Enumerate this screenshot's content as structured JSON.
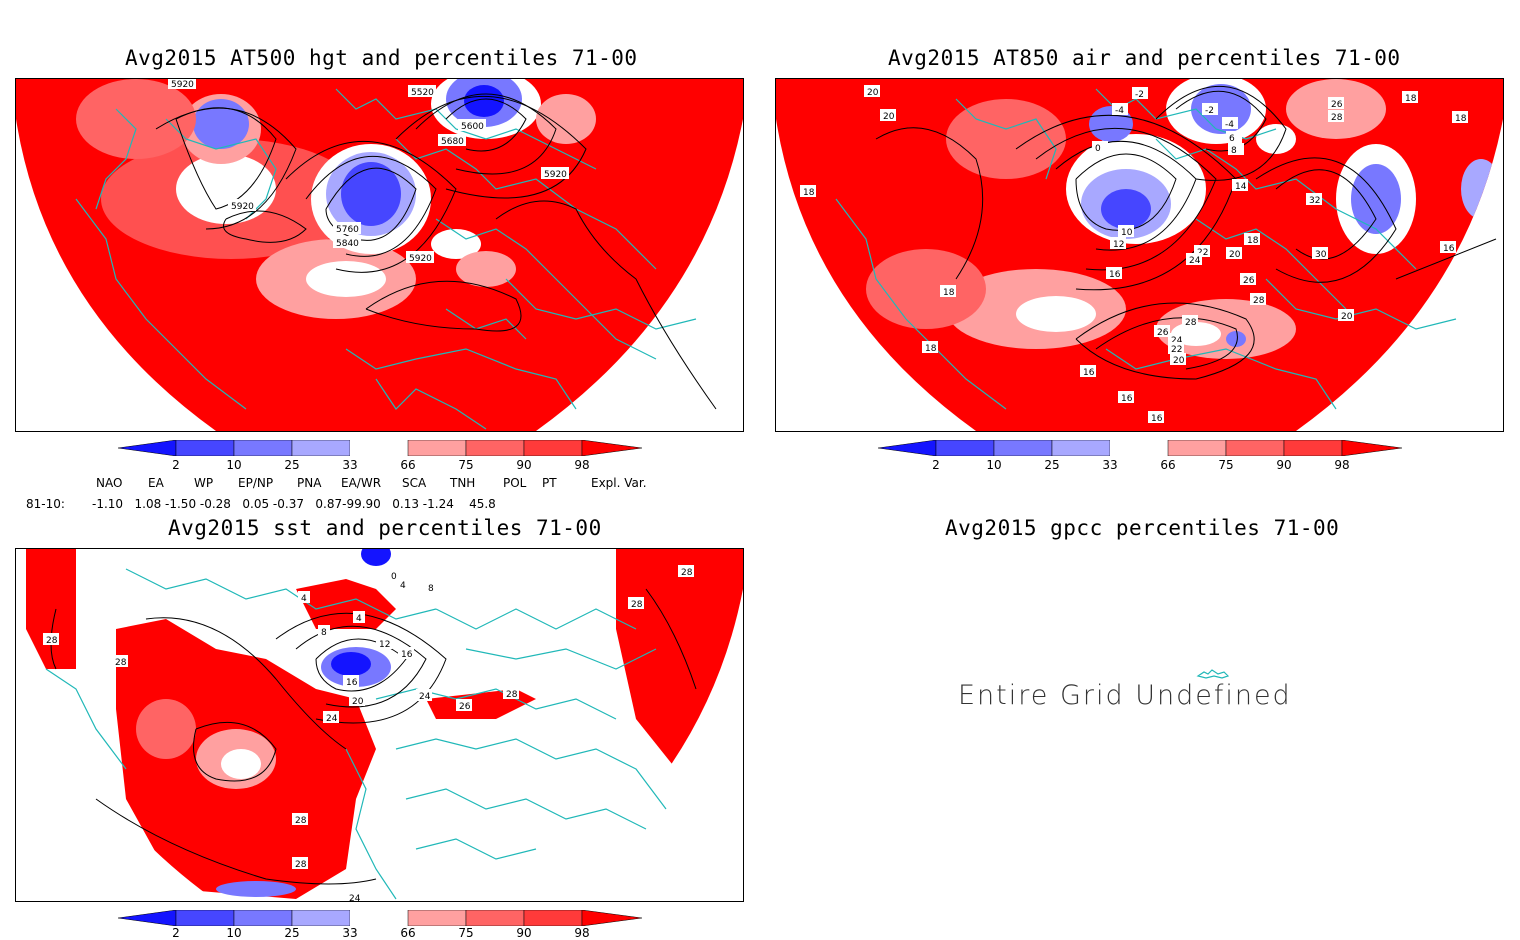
{
  "panels": {
    "hgt": {
      "title": "Avg2015 AT500 hgt and percentiles 71-00",
      "contour_labels": [
        "5920",
        "5520",
        "5600",
        "5680",
        "5920",
        "5920",
        "5760",
        "5840",
        "5920"
      ]
    },
    "air": {
      "title": "Avg2015 AT850 air and percentiles 71-00",
      "contour_labels": [
        "20",
        "20",
        "-4",
        "-2",
        "-2",
        "-4",
        "26",
        "28",
        "18",
        "18",
        "0",
        "6",
        "8",
        "18",
        "14",
        "32",
        "10",
        "12",
        "18",
        "16",
        "20",
        "30",
        "16",
        "22",
        "24",
        "26",
        "18",
        "28",
        "20",
        "28",
        "26",
        "24",
        "22",
        "20",
        "18",
        "16",
        "16",
        "16"
      ]
    },
    "sst": {
      "title": "Avg2015 sst and percentiles 71-00",
      "contour_labels": [
        "28",
        "4",
        "0",
        "4",
        "8",
        "4",
        "28",
        "28",
        "28",
        "8",
        "12",
        "16",
        "16",
        "20",
        "24",
        "24",
        "26",
        "28",
        "28",
        "28",
        "24"
      ]
    },
    "gpcc": {
      "title": "Avg2015 gpcc percentiles 71-00",
      "message": "Entire Grid Undefined"
    }
  },
  "colorbar": {
    "labels": [
      "2",
      "10",
      "25",
      "33",
      "66",
      "75",
      "90",
      "98"
    ],
    "colors": [
      "#1414ff",
      "#4646ff",
      "#7878ff",
      "#a8a8ff",
      "#ffffff",
      "#ffa0a0",
      "#ff6464",
      "#ff3a3a",
      "#ff0000"
    ]
  },
  "indices": {
    "headers": [
      "NAO",
      "EA",
      "WP",
      "EP/NP",
      "PNA",
      "EA/WR",
      "SCA",
      "TNH",
      "POL",
      "PT",
      "Expl. Var."
    ],
    "row_label": "81-10:",
    "values": "-1.10   1.08 -1.50 -0.28   0.05 -0.37   0.87-99.90   0.13 -1.24    45.8"
  },
  "colors": {
    "land_outline": "#20b8b8",
    "high": "#ff0000",
    "low": "#1e1eff"
  }
}
